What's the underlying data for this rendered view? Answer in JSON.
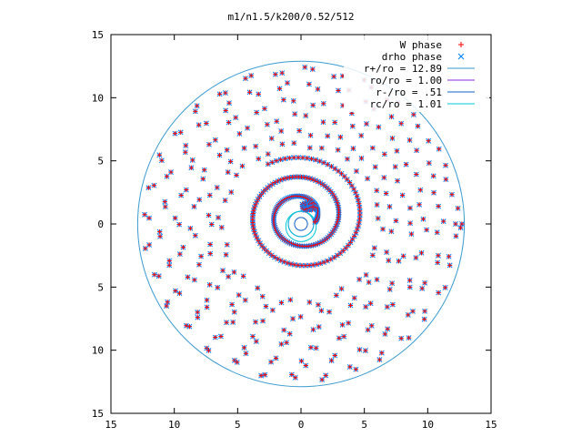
{
  "chart_data": {
    "type": "scatter",
    "title": "m1/n1.5/k200/0.52/512",
    "xlabel": "",
    "ylabel": "",
    "xlim": [
      -15,
      15
    ],
    "ylim": [
      -15,
      15
    ],
    "x_tick_values": [
      -15,
      -10,
      -5,
      0,
      5,
      10,
      15
    ],
    "x_tick_labels": [
      "15",
      "10",
      "5",
      "0",
      "5",
      "10",
      "15"
    ],
    "y_tick_values": [
      15,
      10,
      5,
      0,
      -5,
      -10,
      -15
    ],
    "y_tick_labels": [
      "15",
      "10",
      "5",
      "0",
      "5",
      "10",
      "15"
    ],
    "grid": false,
    "legend_position": "top-right",
    "series": [
      {
        "name": "W phase",
        "marker": "+",
        "color": "#ff0000"
      },
      {
        "name": "drho phase",
        "marker": "x",
        "color": "#0080ff"
      }
    ],
    "circles": [
      {
        "name": "r+/ro = 12.89",
        "radius": 12.89,
        "color": "#3a9bd0"
      },
      {
        "name": "ro/ro = 1.00",
        "radius": 1.0,
        "color": "#8a2be2"
      },
      {
        "name": "r-/ro = .51",
        "radius": 0.51,
        "color": "#1060c8"
      },
      {
        "name": "rc/ro = 1.01",
        "radius": 1.01,
        "color": "#00c8d8"
      }
    ],
    "rings": [
      {
        "radius": 12.2,
        "count": 64,
        "phase": 0.0
      },
      {
        "radius": 11.0,
        "count": 58,
        "phase": 0.17
      },
      {
        "radius": 9.7,
        "count": 52,
        "phase": 0.33
      },
      {
        "radius": 8.5,
        "count": 46,
        "phase": 0.05
      },
      {
        "radius": 7.3,
        "count": 40,
        "phase": 0.22
      },
      {
        "radius": 6.3,
        "count": 36,
        "phase": 0.41
      }
    ],
    "spiral": {
      "center": [
        0.9,
        0.0
      ],
      "r_start": 5.2,
      "r_end": 1.2,
      "theta_start_deg": 120,
      "turns": 2.4,
      "points": 220
    },
    "cluster": {
      "center": [
        0.6,
        1.4
      ],
      "radius": 0.6,
      "points": 40
    },
    "edge_marks": [
      [
        12.7,
        0.0
      ],
      [
        12.6,
        -0.3
      ]
    ]
  }
}
